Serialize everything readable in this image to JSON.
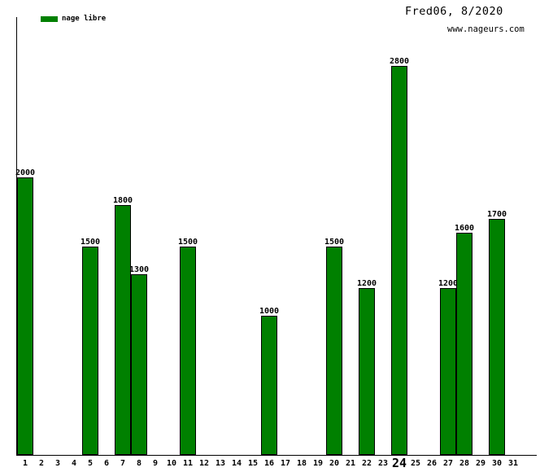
{
  "header": {
    "title": "Fred06, 8/2020",
    "website": "www.nageurs.com"
  },
  "legend": {
    "items": [
      {
        "label": "nage libre",
        "color": "#008000"
      }
    ]
  },
  "chart_data": {
    "type": "bar",
    "title": "Fred06, 8/2020",
    "xlabel": "",
    "ylabel": "",
    "categories": [
      "1",
      "2",
      "3",
      "4",
      "5",
      "6",
      "7",
      "8",
      "9",
      "10",
      "11",
      "12",
      "13",
      "14",
      "15",
      "16",
      "17",
      "18",
      "19",
      "20",
      "21",
      "22",
      "23",
      "24",
      "25",
      "26",
      "27",
      "28",
      "29",
      "30",
      "31"
    ],
    "highlighted_category": "24",
    "ylim": [
      0,
      2800
    ],
    "grid": false,
    "legend_position": "top-left",
    "value_labels_shown": true,
    "bar_border_color": "#000000",
    "axis_color": "#000000",
    "background_color": "#ffffff",
    "series": [
      {
        "name": "nage libre",
        "color": "#008000",
        "points": [
          {
            "day": 1,
            "value": 2000
          },
          {
            "day": 5,
            "value": 1500
          },
          {
            "day": 7,
            "value": 1800
          },
          {
            "day": 8,
            "value": 1300
          },
          {
            "day": 11,
            "value": 1500
          },
          {
            "day": 16,
            "value": 1000
          },
          {
            "day": 20,
            "value": 1500
          },
          {
            "day": 22,
            "value": 1200
          },
          {
            "day": 24,
            "value": 2800
          },
          {
            "day": 27,
            "value": 1200
          },
          {
            "day": 28,
            "value": 1600
          },
          {
            "day": 30,
            "value": 1700
          }
        ]
      }
    ]
  }
}
